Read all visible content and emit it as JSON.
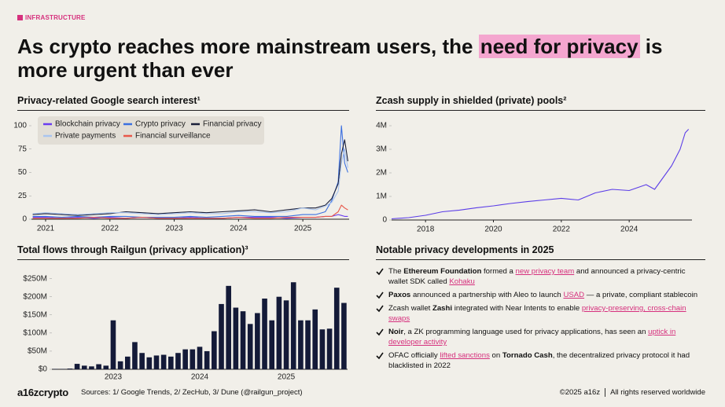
{
  "header": {
    "tag": "INFRASTRUCTURE",
    "title": {
      "before": "As crypto reaches more mainstream users, the ",
      "highlight": "need for privacy",
      "after": " is more urgent than ever"
    }
  },
  "chart_data": [
    {
      "type": "line",
      "title": "Privacy-related Google search interest¹",
      "x": [
        2020.8,
        2021,
        2021.25,
        2021.5,
        2021.75,
        2022,
        2022.25,
        2022.5,
        2022.75,
        2023,
        2023.25,
        2023.5,
        2023.75,
        2024,
        2024.25,
        2024.5,
        2024.75,
        2025,
        2025.2,
        2025.35,
        2025.45,
        2025.55,
        2025.6,
        2025.65,
        2025.7
      ],
      "series": [
        {
          "name": "Blockchain privacy",
          "color": "#6a3df0",
          "values": [
            2,
            2,
            1,
            2,
            1,
            2,
            1,
            2,
            1,
            1,
            2,
            1,
            1,
            2,
            2,
            2,
            1,
            2,
            2,
            3,
            3,
            5,
            4,
            3,
            3
          ]
        },
        {
          "name": "Crypto privacy",
          "color": "#3b6fe0",
          "values": [
            3,
            3,
            2,
            3,
            2,
            3,
            3,
            2,
            2,
            2,
            3,
            2,
            3,
            4,
            3,
            3,
            3,
            5,
            5,
            8,
            20,
            40,
            100,
            60,
            50
          ]
        },
        {
          "name": "Financial privacy",
          "color": "#1a1f3a",
          "values": [
            5,
            6,
            5,
            4,
            5,
            6,
            8,
            7,
            6,
            7,
            8,
            7,
            8,
            9,
            10,
            8,
            10,
            12,
            12,
            15,
            22,
            38,
            70,
            85,
            62
          ]
        },
        {
          "name": "Private payments",
          "color": "#a9c4ef",
          "values": [
            6,
            7,
            6,
            5,
            6,
            7,
            7,
            6,
            5,
            6,
            7,
            6,
            6,
            8,
            8,
            7,
            8,
            12,
            10,
            14,
            18,
            30,
            60,
            75,
            55
          ]
        },
        {
          "name": "Financial surveillance",
          "color": "#e8584a",
          "values": [
            1,
            1,
            1,
            1,
            2,
            1,
            1,
            2,
            1,
            1,
            1,
            1,
            1,
            2,
            1,
            1,
            2,
            2,
            2,
            3,
            3,
            8,
            15,
            12,
            10
          ]
        }
      ],
      "xlim": [
        2020.78,
        2025.72
      ],
      "xticks": [
        2021,
        2022,
        2023,
        2024,
        2025
      ],
      "ylim": [
        0,
        100
      ],
      "yticks": [
        0,
        25,
        50,
        75,
        100
      ],
      "legend": "top-left"
    },
    {
      "type": "line",
      "title": "Zcash supply in shielded (private) pools²",
      "color": "#5b3de8",
      "x": [
        2017,
        2017.5,
        2018,
        2018.5,
        2019,
        2019.5,
        2020,
        2020.5,
        2021,
        2021.5,
        2022,
        2022.5,
        2023,
        2023.5,
        2024,
        2024.5,
        2024.75,
        2025,
        2025.25,
        2025.5,
        2025.65,
        2025.75
      ],
      "values": [
        50000,
        100000,
        200000,
        350000,
        420000,
        520000,
        600000,
        700000,
        780000,
        850000,
        920000,
        850000,
        1150000,
        1300000,
        1250000,
        1500000,
        1300000,
        1800000,
        2300000,
        3000000,
        3700000,
        3850000
      ],
      "xlim": [
        2017,
        2025.85
      ],
      "xticks": [
        2018,
        2020,
        2022,
        2024
      ],
      "ylim": [
        0,
        4000000
      ],
      "yticks": [
        0,
        {
          "value": 1000000,
          "label": "1M"
        },
        {
          "value": 2000000,
          "label": "2M"
        },
        {
          "value": 3000000,
          "label": "3M"
        },
        {
          "value": 4000000,
          "label": "4M"
        }
      ]
    },
    {
      "type": "bar",
      "title": "Total flows through Railgun (privacy application)³",
      "color": "#141a38",
      "categories": [
        null,
        null,
        null,
        null,
        null,
        null,
        null,
        null,
        "2023",
        null,
        null,
        null,
        null,
        null,
        null,
        null,
        null,
        null,
        null,
        null,
        "2024",
        null,
        null,
        null,
        null,
        null,
        null,
        null,
        null,
        null,
        null,
        null,
        "2025",
        null,
        null,
        null,
        null,
        null,
        null,
        null,
        null
      ],
      "values": [
        1000000,
        1000000,
        2000000,
        15000000,
        10000000,
        8000000,
        14000000,
        10000000,
        135000000,
        22000000,
        35000000,
        75000000,
        45000000,
        33000000,
        38000000,
        40000000,
        35000000,
        45000000,
        55000000,
        55000000,
        62000000,
        50000000,
        105000000,
        180000000,
        230000000,
        170000000,
        160000000,
        125000000,
        155000000,
        195000000,
        135000000,
        200000000,
        190000000,
        240000000,
        135000000,
        135000000,
        165000000,
        110000000,
        112000000,
        225000000,
        183000000
      ],
      "ylim": [
        0,
        260000000
      ],
      "yticks": [
        {
          "value": 0,
          "label": "$0"
        },
        {
          "value": 50000000,
          "label": "$50M"
        },
        {
          "value": 100000000,
          "label": "$100M"
        },
        {
          "value": 150000000,
          "label": "$150M"
        },
        {
          "value": 200000000,
          "label": "$200M"
        },
        {
          "value": 250000000,
          "label": "$250M"
        }
      ]
    }
  ],
  "developments": {
    "title": "Notable privacy developments in 2025",
    "items": [
      {
        "segments": [
          {
            "text": "The "
          },
          {
            "text": "Ethereum Foundation",
            "style": "bold"
          },
          {
            "text": " formed a "
          },
          {
            "text": "new privacy team",
            "style": "link"
          },
          {
            "text": " and announced a privacy-centric wallet SDK called "
          },
          {
            "text": "Kohaku",
            "style": "link"
          }
        ]
      },
      {
        "segments": [
          {
            "text": "Paxos",
            "style": "bold"
          },
          {
            "text": " announced a partnership with Aleo to launch "
          },
          {
            "text": "USAD",
            "style": "link"
          },
          {
            "text": " — a private, compliant stablecoin"
          }
        ]
      },
      {
        "segments": [
          {
            "text": "Zcash wallet "
          },
          {
            "text": "Zashi",
            "style": "bold"
          },
          {
            "text": " integrated with Near Intents to enable "
          },
          {
            "text": "privacy-preserving, cross-chain swaps",
            "style": "link"
          }
        ]
      },
      {
        "segments": [
          {
            "text": "Noir",
            "style": "bold"
          },
          {
            "text": ", a ZK programming language used for privacy applications, has seen an "
          },
          {
            "text": "uptick in developer activity",
            "style": "link"
          }
        ]
      },
      {
        "segments": [
          {
            "text": "OFAC officially "
          },
          {
            "text": "lifted sanctions",
            "style": "link"
          },
          {
            "text": " on "
          },
          {
            "text": "Tornado Cash",
            "style": "bold"
          },
          {
            "text": ", the decentralized privacy protocol it had blacklisted in 2022"
          }
        ]
      }
    ]
  },
  "footer": {
    "logo": "a16zcrypto",
    "sources": "Sources: 1/ Google Trends, 2/ ZecHub, 3/ Dune (@railgun_project)",
    "copyright": "©2025 a16z",
    "rights": "All rights reserved worldwide"
  }
}
